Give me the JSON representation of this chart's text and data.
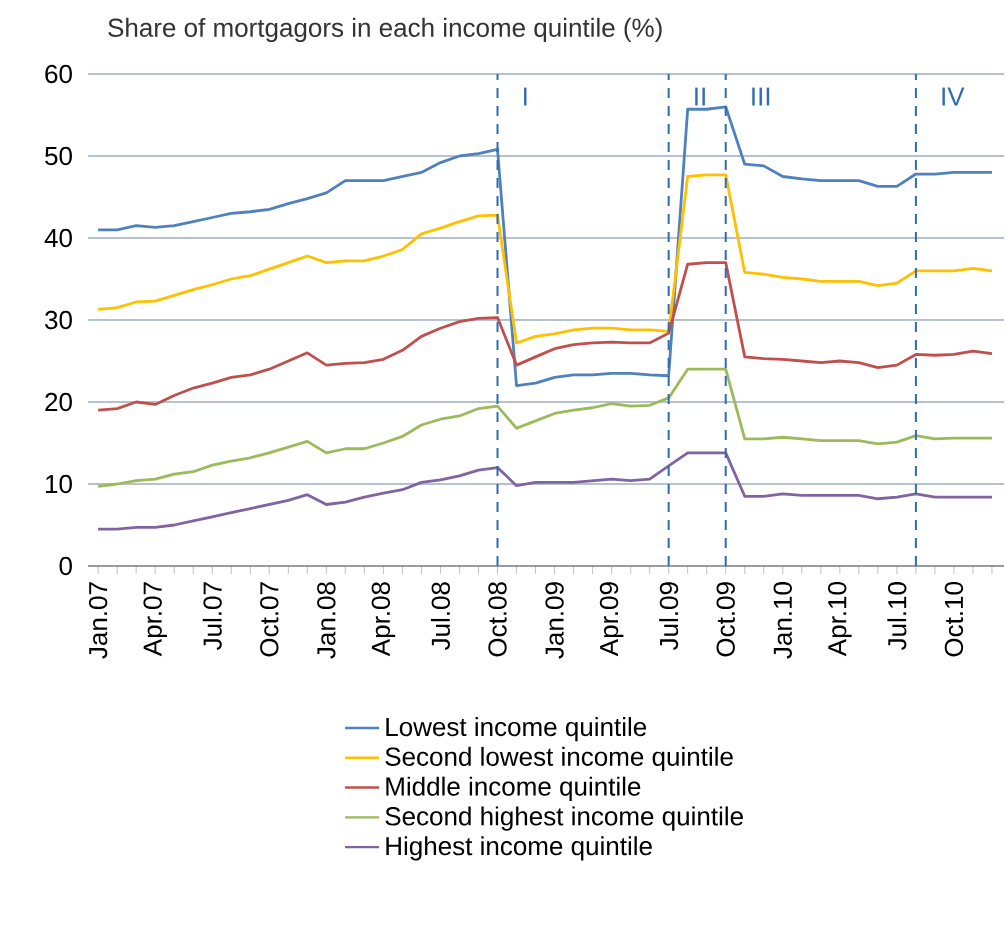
{
  "chart_data": {
    "type": "line",
    "title": "Share of mortgagors in each income quintile (%)",
    "x": [
      "2007-01",
      "2007-02",
      "2007-03",
      "2007-04",
      "2007-05",
      "2007-06",
      "2007-07",
      "2007-08",
      "2007-09",
      "2007-10",
      "2007-11",
      "2007-12",
      "2008-01",
      "2008-02",
      "2008-03",
      "2008-04",
      "2008-05",
      "2008-06",
      "2008-07",
      "2008-08",
      "2008-09",
      "2008-10",
      "2008-11",
      "2008-12",
      "2009-01",
      "2009-02",
      "2009-03",
      "2009-04",
      "2009-05",
      "2009-06",
      "2009-07",
      "2009-08",
      "2009-09",
      "2009-10",
      "2009-11",
      "2009-12",
      "2010-01",
      "2010-02",
      "2010-03",
      "2010-04",
      "2010-05",
      "2010-06",
      "2010-07",
      "2010-08",
      "2010-09",
      "2010-10",
      "2010-11",
      "2010-12"
    ],
    "series": [
      {
        "name": "Lowest income quintile",
        "color": "#4f81bd",
        "values": [
          41,
          41,
          41.5,
          41.3,
          41.5,
          42,
          42.5,
          43,
          43.2,
          43.5,
          44.2,
          44.8,
          45.5,
          47,
          47,
          47,
          47.5,
          48,
          49.2,
          50,
          50.3,
          50.8,
          22,
          22.3,
          23,
          23.3,
          23.3,
          23.5,
          23.5,
          23.3,
          23.2,
          55.7,
          55.7,
          56,
          49,
          48.8,
          47.5,
          47.2,
          47,
          47,
          47,
          46.3,
          46.3,
          47.8,
          47.8,
          48,
          48,
          48
        ]
      },
      {
        "name": "Second lowest income quintile",
        "color": "#ffc000",
        "values": [
          31.3,
          31.5,
          32.2,
          32.3,
          33,
          33.7,
          34.3,
          35,
          35.4,
          36.2,
          37,
          37.8,
          37,
          37.2,
          37.2,
          37.8,
          38.6,
          40.5,
          41.2,
          42,
          42.7,
          42.8,
          27.2,
          28,
          28.3,
          28.8,
          29,
          29,
          28.8,
          28.8,
          28.6,
          47.5,
          47.7,
          47.7,
          35.8,
          35.6,
          35.2,
          35,
          34.7,
          34.7,
          34.7,
          34.2,
          34.5,
          36,
          36,
          36,
          36.3,
          36
        ]
      },
      {
        "name": "Middle income quintile",
        "color": "#c0504d",
        "values": [
          19,
          19.2,
          20,
          19.7,
          20.8,
          21.7,
          22.3,
          23,
          23.3,
          24,
          25,
          26,
          24.5,
          24.7,
          24.8,
          25.2,
          26.3,
          28,
          29,
          29.8,
          30.2,
          30.3,
          24.5,
          25.5,
          26.5,
          27,
          27.2,
          27.3,
          27.2,
          27.2,
          28.4,
          36.8,
          37,
          37,
          25.5,
          25.3,
          25.2,
          25,
          24.8,
          25,
          24.8,
          24.2,
          24.5,
          25.8,
          25.7,
          25.8,
          26.2,
          25.9
        ]
      },
      {
        "name": "Second highest income quintile",
        "color": "#9bbb59",
        "values": [
          9.7,
          10,
          10.4,
          10.6,
          11.2,
          11.5,
          12.3,
          12.8,
          13.2,
          13.8,
          14.5,
          15.2,
          13.8,
          14.3,
          14.3,
          15,
          15.8,
          17.2,
          17.9,
          18.3,
          19.2,
          19.5,
          16.8,
          17.7,
          18.6,
          19,
          19.3,
          19.8,
          19.5,
          19.6,
          20.5,
          24,
          24,
          24,
          15.5,
          15.5,
          15.7,
          15.5,
          15.3,
          15.3,
          15.3,
          14.9,
          15.1,
          15.9,
          15.5,
          15.6,
          15.6,
          15.6
        ]
      },
      {
        "name": "Highest income quintile",
        "color": "#8064a2",
        "values": [
          4.5,
          4.5,
          4.7,
          4.7,
          5,
          5.5,
          6,
          6.5,
          7,
          7.5,
          8,
          8.7,
          7.5,
          7.8,
          8.4,
          8.9,
          9.3,
          10.2,
          10.5,
          11,
          11.7,
          12,
          9.8,
          10.2,
          10.2,
          10.2,
          10.4,
          10.6,
          10.4,
          10.6,
          12.2,
          13.8,
          13.8,
          13.8,
          8.5,
          8.5,
          8.8,
          8.6,
          8.6,
          8.6,
          8.6,
          8.2,
          8.4,
          8.8,
          8.4,
          8.4,
          8.4,
          8.4
        ]
      }
    ],
    "xlim": [
      "2006-12-15",
      "2010-12-20"
    ],
    "ylim": [
      0,
      60
    ],
    "xticks": [
      {
        "value": "2007-01",
        "label": "Jan.07"
      },
      {
        "value": "2007-02",
        "label": null
      },
      {
        "value": "2007-03",
        "label": null
      },
      {
        "value": "2007-04",
        "label": "Apr.07"
      },
      {
        "value": "2007-05",
        "label": null
      },
      {
        "value": "2007-06",
        "label": null
      },
      {
        "value": "2007-07",
        "label": "Jul.07"
      },
      {
        "value": "2007-08",
        "label": null
      },
      {
        "value": "2007-09",
        "label": null
      },
      {
        "value": "2007-10",
        "label": "Oct.07"
      },
      {
        "value": "2007-11",
        "label": null
      },
      {
        "value": "2007-12",
        "label": null
      },
      {
        "value": "2008-01",
        "label": "Jan.08"
      },
      {
        "value": "2008-02",
        "label": null
      },
      {
        "value": "2008-03",
        "label": null
      },
      {
        "value": "2008-04",
        "label": "Apr.08"
      },
      {
        "value": "2008-05",
        "label": null
      },
      {
        "value": "2008-06",
        "label": null
      },
      {
        "value": "2008-07",
        "label": "Jul.08"
      },
      {
        "value": "2008-08",
        "label": null
      },
      {
        "value": "2008-09",
        "label": null
      },
      {
        "value": "2008-10",
        "label": "Oct.08"
      },
      {
        "value": "2008-11",
        "label": null
      },
      {
        "value": "2008-12",
        "label": null
      },
      {
        "value": "2009-01",
        "label": "Jan.09"
      },
      {
        "value": "2009-02",
        "label": null
      },
      {
        "value": "2009-03",
        "label": null
      },
      {
        "value": "2009-04",
        "label": "Apr.09"
      },
      {
        "value": "2009-05",
        "label": null
      },
      {
        "value": "2009-06",
        "label": null
      },
      {
        "value": "2009-07",
        "label": "Jul.09"
      },
      {
        "value": "2009-08",
        "label": null
      },
      {
        "value": "2009-09",
        "label": null
      },
      {
        "value": "2009-10",
        "label": "Oct.09"
      },
      {
        "value": "2009-11",
        "label": null
      },
      {
        "value": "2009-12",
        "label": null
      },
      {
        "value": "2010-01",
        "label": "Jan.10"
      },
      {
        "value": "2010-02",
        "label": null
      },
      {
        "value": "2010-03",
        "label": null
      },
      {
        "value": "2010-04",
        "label": "Apr.10"
      },
      {
        "value": "2010-05",
        "label": null
      },
      {
        "value": "2010-06",
        "label": null
      },
      {
        "value": "2010-07",
        "label": "Jul.10"
      },
      {
        "value": "2010-08",
        "label": null
      },
      {
        "value": "2010-09",
        "label": null
      },
      {
        "value": "2010-10",
        "label": "Oct.10"
      },
      {
        "value": "2010-11",
        "label": null
      },
      {
        "value": "2010-12",
        "label": null
      }
    ],
    "yticks": [
      0,
      10,
      20,
      30,
      40,
      50,
      60
    ],
    "ref_lines": [
      {
        "axis": "x",
        "value": "2008-10",
        "label": "I",
        "color": "#2e6bb0",
        "line_style": "dashed"
      },
      {
        "axis": "x",
        "value": "2009-07",
        "label": "II",
        "color": "#2e6bb0",
        "line_style": "dashed"
      },
      {
        "axis": "x",
        "value": "2009-10",
        "label": "III",
        "color": "#2e6bb0",
        "line_style": "dashed"
      },
      {
        "axis": "x",
        "value": "2010-08",
        "label": "IV",
        "color": "#2e6bb0",
        "line_style": "dashed"
      }
    ],
    "grid": "y",
    "legend": "bottom",
    "marker": "none",
    "line_style": "solid"
  }
}
